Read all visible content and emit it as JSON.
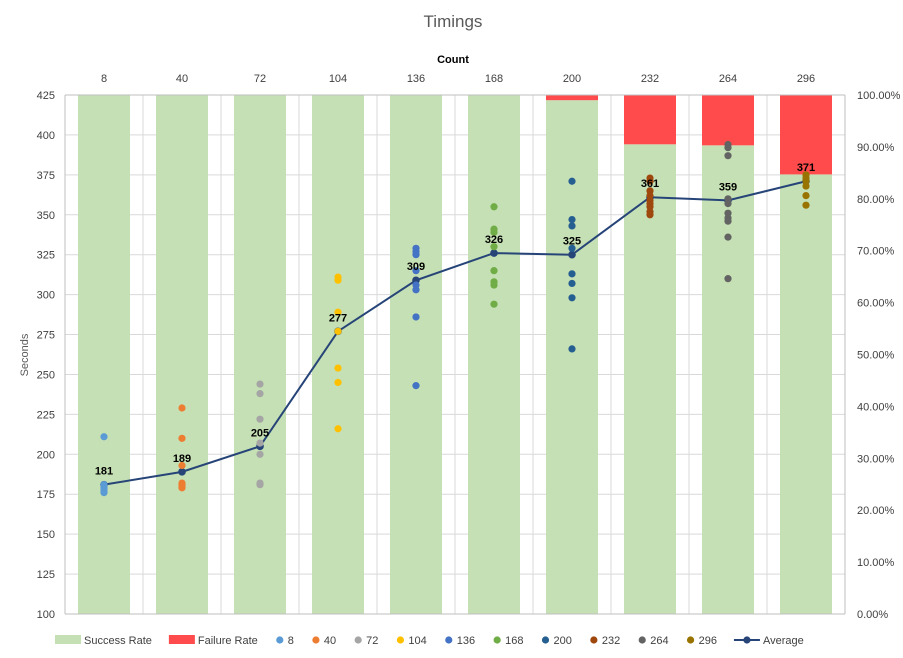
{
  "chart_data": {
    "type": "bar+line+scatter",
    "title": "Timings",
    "x_axis_top_label": "Count",
    "categories": [
      "8",
      "40",
      "72",
      "104",
      "136",
      "168",
      "200",
      "232",
      "264",
      "296"
    ],
    "ylabel_left": "Seconds",
    "ylim_left": [
      100,
      425
    ],
    "yticks_left": [
      100,
      125,
      150,
      175,
      200,
      225,
      250,
      275,
      300,
      325,
      350,
      375,
      400,
      425
    ],
    "ylim_right": [
      0,
      1
    ],
    "yticks_right": [
      "0.00%",
      "10.00%",
      "20.00%",
      "30.00%",
      "40.00%",
      "50.00%",
      "60.00%",
      "70.00%",
      "80.00%",
      "90.00%",
      "100.00%"
    ],
    "grid": true,
    "legend_position": "bottom",
    "success_rate": [
      1.0,
      1.0,
      1.0,
      1.0,
      1.0,
      1.0,
      0.99,
      0.905,
      0.903,
      0.847
    ],
    "failure_rate": [
      0.0,
      0.0,
      0.0,
      0.0,
      0.0,
      0.0,
      0.01,
      0.095,
      0.097,
      0.153
    ],
    "average": [
      181,
      189,
      205,
      277,
      309,
      326,
      325,
      361,
      359,
      371
    ],
    "average_labels": [
      "181",
      "189",
      "205",
      "277",
      "309",
      "326",
      "325",
      "361",
      "359",
      "371"
    ],
    "scatter": [
      {
        "name": "8",
        "color": "#5B9BD5",
        "values": [
          211,
          181,
          179,
          178,
          177,
          176
        ]
      },
      {
        "name": "40",
        "color": "#ED7D31",
        "values": [
          229,
          210,
          193,
          182,
          181,
          180,
          179
        ]
      },
      {
        "name": "72",
        "color": "#A5A5A5",
        "values": [
          244,
          238,
          222,
          207,
          200,
          182,
          181
        ]
      },
      {
        "name": "104",
        "color": "#FFC000",
        "values": [
          311,
          309,
          289,
          277,
          254,
          245,
          216
        ]
      },
      {
        "name": "136",
        "color": "#4472C4",
        "values": [
          329,
          327,
          325,
          315,
          306,
          303,
          286,
          243
        ]
      },
      {
        "name": "168",
        "color": "#70AD47",
        "values": [
          355,
          341,
          339,
          330,
          315,
          308,
          306,
          294
        ]
      },
      {
        "name": "200",
        "color": "#255E91",
        "values": [
          371,
          347,
          343,
          329,
          313,
          307,
          298,
          266
        ]
      },
      {
        "name": "232",
        "color": "#9E480E",
        "values": [
          373,
          371,
          365,
          362,
          359,
          357,
          355,
          352,
          350
        ]
      },
      {
        "name": "264",
        "color": "#636363",
        "values": [
          394,
          392,
          387,
          360,
          357,
          351,
          348,
          346,
          336,
          310
        ]
      },
      {
        "name": "296",
        "color": "#997300",
        "values": [
          375,
          373,
          371,
          368,
          362,
          356
        ]
      }
    ],
    "legend": [
      {
        "label": "Success Rate",
        "kind": "rect",
        "color": "#C5E0B4"
      },
      {
        "label": "Failure Rate",
        "kind": "rect",
        "color": "#FF4B4B"
      },
      {
        "label": "8",
        "kind": "dot",
        "color": "#5B9BD5"
      },
      {
        "label": "40",
        "kind": "dot",
        "color": "#ED7D31"
      },
      {
        "label": "72",
        "kind": "dot",
        "color": "#A5A5A5"
      },
      {
        "label": "104",
        "kind": "dot",
        "color": "#FFC000"
      },
      {
        "label": "136",
        "kind": "dot",
        "color": "#4472C4"
      },
      {
        "label": "168",
        "kind": "dot",
        "color": "#70AD47"
      },
      {
        "label": "200",
        "kind": "dot",
        "color": "#255E91"
      },
      {
        "label": "232",
        "kind": "dot",
        "color": "#9E480E"
      },
      {
        "label": "264",
        "kind": "dot",
        "color": "#636363"
      },
      {
        "label": "296",
        "kind": "dot",
        "color": "#997300"
      },
      {
        "label": "Average",
        "kind": "line",
        "color": "#264478"
      }
    ],
    "colors": {
      "success": "#C5E0B4",
      "failure": "#FF4B4B",
      "average_line": "#264478",
      "grid": "#D9D9D9",
      "axis": "#BFBFBF"
    }
  }
}
